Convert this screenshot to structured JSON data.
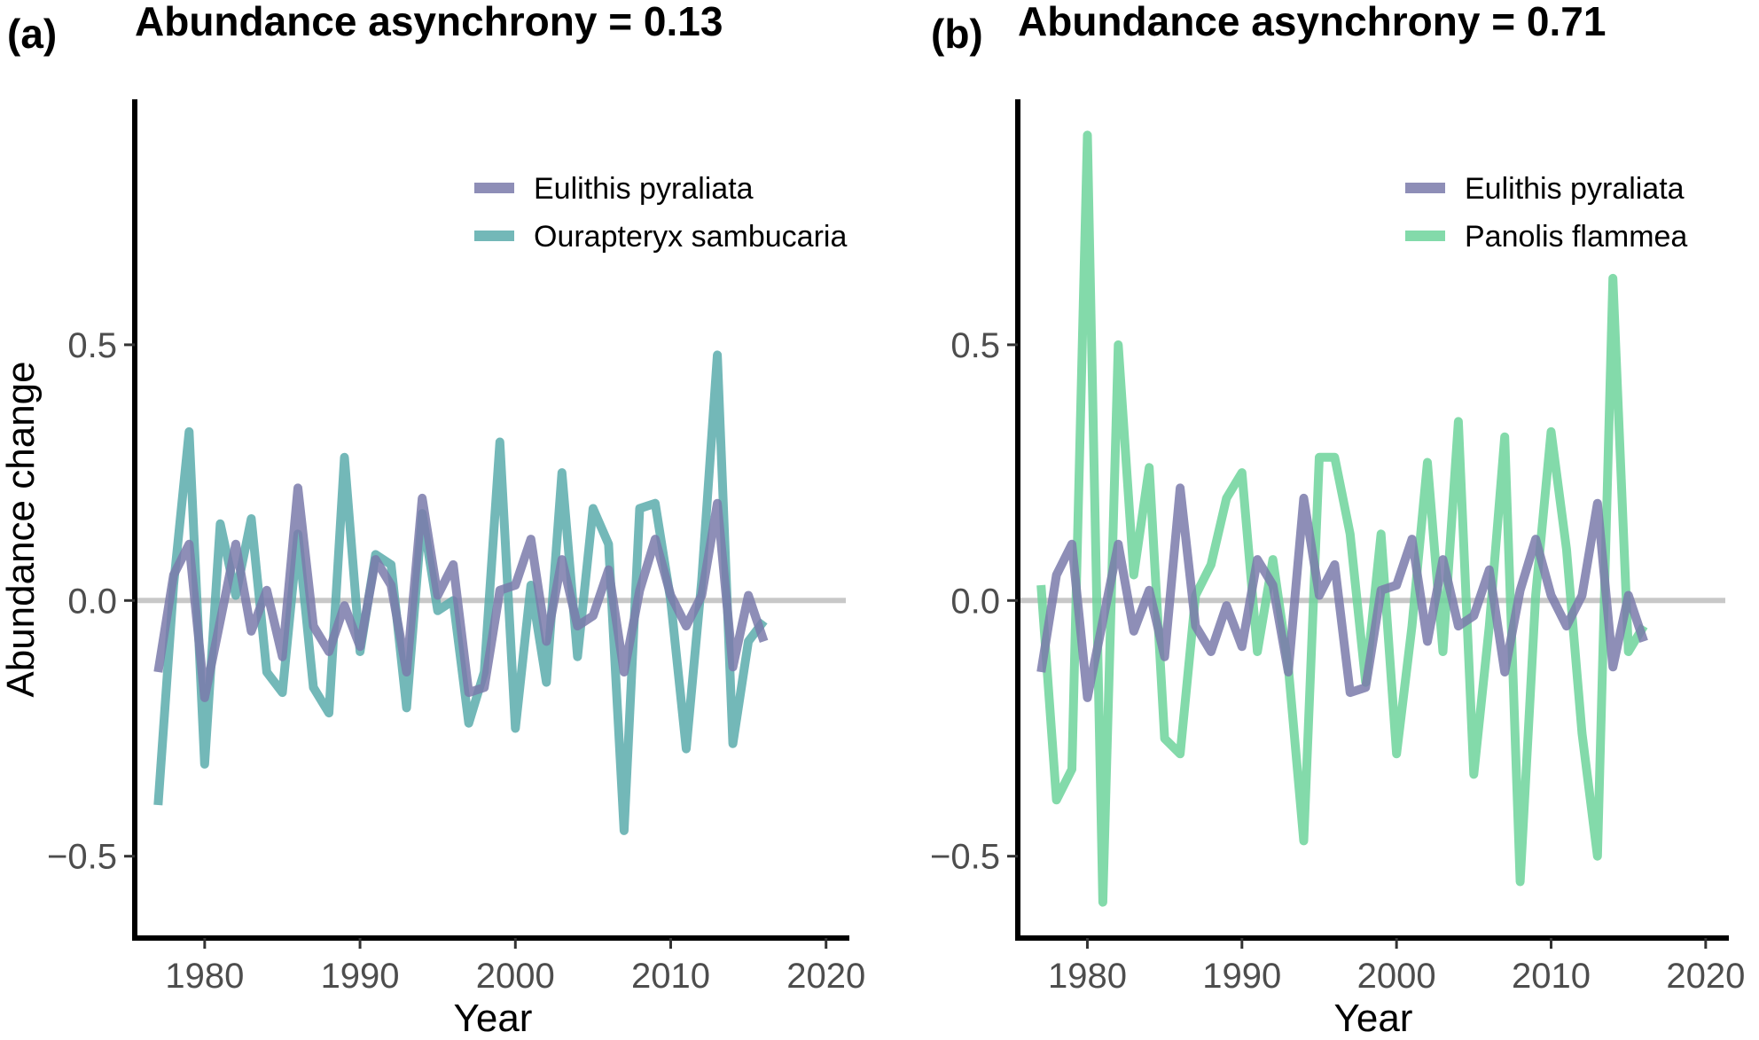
{
  "figure": {
    "y_axis_title": "Abundance change",
    "x_axis_title": "Year"
  },
  "chart_data": [
    {
      "type": "line",
      "panel_label": "(a)",
      "title": "Abundance asynchrony = 0.13",
      "xlabel": "Year",
      "ylabel": "Abundance change",
      "xlim": [
        1975.5,
        2021.5
      ],
      "ylim": [
        -0.66,
        0.98
      ],
      "xticks": [
        1980,
        1990,
        2000,
        2010,
        2020
      ],
      "xtick_labels": [
        "1980",
        "1990",
        "2000",
        "2010",
        "2020"
      ],
      "yticks": [
        -0.5,
        0.0,
        0.5
      ],
      "ytick_labels": [
        "−0.5",
        "0.0",
        "0.5"
      ],
      "reference_line": 0.0,
      "legend_position": "top-right",
      "grid": false,
      "x": [
        1977,
        1978,
        1979,
        1980,
        1981,
        1982,
        1983,
        1984,
        1985,
        1986,
        1987,
        1988,
        1989,
        1990,
        1991,
        1992,
        1993,
        1994,
        1995,
        1996,
        1997,
        1998,
        1999,
        2000,
        2001,
        2002,
        2003,
        2004,
        2005,
        2006,
        2007,
        2008,
        2009,
        2010,
        2011,
        2012,
        2013,
        2014,
        2015,
        2016
      ],
      "series": [
        {
          "name": "Ourapteryx sambucaria",
          "color": "#5aabab",
          "values": [
            -0.4,
            0.03,
            0.33,
            -0.32,
            0.15,
            0.01,
            0.16,
            -0.14,
            -0.18,
            0.13,
            -0.17,
            -0.22,
            0.28,
            -0.1,
            0.09,
            0.07,
            -0.21,
            0.17,
            -0.02,
            0.0,
            -0.24,
            -0.14,
            0.31,
            -0.25,
            0.03,
            -0.16,
            0.25,
            -0.11,
            0.18,
            0.11,
            -0.45,
            0.18,
            0.19,
            0.0,
            -0.29,
            0.04,
            0.48,
            -0.28,
            -0.08,
            -0.04
          ]
        },
        {
          "name": "Eulithis pyraliata",
          "color": "#7a7aaa",
          "values": [
            -0.14,
            0.05,
            0.11,
            -0.19,
            -0.04,
            0.11,
            -0.06,
            0.02,
            -0.11,
            0.22,
            -0.05,
            -0.1,
            -0.01,
            -0.09,
            0.08,
            0.03,
            -0.14,
            0.2,
            0.01,
            0.07,
            -0.18,
            -0.17,
            0.02,
            0.03,
            0.12,
            -0.08,
            0.08,
            -0.05,
            -0.03,
            0.06,
            -0.14,
            0.02,
            0.12,
            0.01,
            -0.05,
            0.01,
            0.19,
            -0.13,
            0.01,
            -0.08
          ]
        }
      ]
    },
    {
      "type": "line",
      "panel_label": "(b)",
      "title": "Abundance asynchrony = 0.71",
      "xlabel": "Year",
      "ylabel": "",
      "xlim": [
        1975.5,
        2021.5
      ],
      "ylim": [
        -0.66,
        0.98
      ],
      "xticks": [
        1980,
        1990,
        2000,
        2010,
        2020
      ],
      "xtick_labels": [
        "1980",
        "1990",
        "2000",
        "2010",
        "2020"
      ],
      "yticks": [
        -0.5,
        0.0,
        0.5
      ],
      "ytick_labels": [
        "−0.5",
        "0.0",
        "0.5"
      ],
      "reference_line": 0.0,
      "legend_position": "top-right",
      "grid": false,
      "x": [
        1977,
        1978,
        1979,
        1980,
        1981,
        1982,
        1983,
        1984,
        1985,
        1986,
        1987,
        1988,
        1989,
        1990,
        1991,
        1992,
        1993,
        1994,
        1995,
        1996,
        1997,
        1998,
        1999,
        2000,
        2001,
        2002,
        2003,
        2004,
        2005,
        2006,
        2007,
        2008,
        2009,
        2010,
        2011,
        2012,
        2013,
        2014,
        2015,
        2016
      ],
      "series": [
        {
          "name": "Panolis flammea",
          "color": "#6dd39b",
          "values": [
            0.03,
            -0.39,
            -0.33,
            0.91,
            -0.59,
            0.5,
            0.05,
            0.26,
            -0.27,
            -0.3,
            0.01,
            0.07,
            0.2,
            0.25,
            -0.1,
            0.08,
            -0.13,
            -0.47,
            0.28,
            0.28,
            0.13,
            -0.16,
            0.13,
            -0.3,
            -0.05,
            0.27,
            -0.1,
            0.35,
            -0.34,
            -0.05,
            0.32,
            -0.55,
            0.01,
            0.33,
            0.1,
            -0.26,
            -0.5,
            0.63,
            -0.1,
            -0.05
          ]
        },
        {
          "name": "Eulithis pyraliata",
          "color": "#7a7aaa",
          "values": [
            -0.14,
            0.05,
            0.11,
            -0.19,
            -0.04,
            0.11,
            -0.06,
            0.02,
            -0.11,
            0.22,
            -0.05,
            -0.1,
            -0.01,
            -0.09,
            0.08,
            0.03,
            -0.14,
            0.2,
            0.01,
            0.07,
            -0.18,
            -0.17,
            0.02,
            0.03,
            0.12,
            -0.08,
            0.08,
            -0.05,
            -0.03,
            0.06,
            -0.14,
            0.02,
            0.12,
            0.01,
            -0.05,
            0.01,
            0.19,
            -0.13,
            0.01,
            -0.08
          ]
        }
      ]
    }
  ],
  "legends": [
    {
      "entries": [
        {
          "label": "Eulithis pyraliata",
          "color": "#7a7aaa"
        },
        {
          "label": "Ourapteryx sambucaria",
          "color": "#5aabab"
        }
      ]
    },
    {
      "entries": [
        {
          "label": "Eulithis pyraliata",
          "color": "#7a7aaa"
        },
        {
          "label": "Panolis flammea",
          "color": "#6dd39b"
        }
      ]
    }
  ]
}
